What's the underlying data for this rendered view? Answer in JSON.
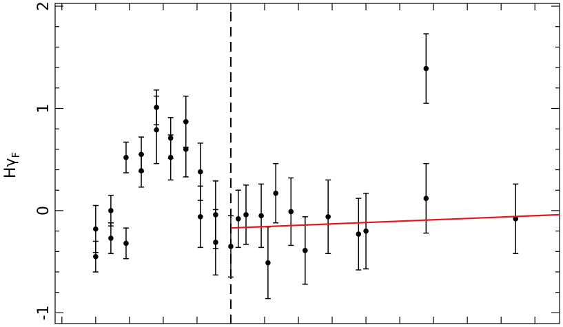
{
  "chart_data": {
    "type": "errorbar",
    "y_label": "Hγ",
    "y_label_sub": "F",
    "xlim": [
      -0.2,
      14.73
    ],
    "ylim": [
      -1.105,
      2.027
    ],
    "xticks": [
      0,
      1,
      2,
      3,
      4,
      5,
      6,
      7,
      8,
      9,
      10,
      11,
      12,
      13,
      14
    ],
    "yticks": [
      -1,
      0,
      1,
      2
    ],
    "yminorticks": [
      -0.8,
      -0.6,
      -0.4,
      -0.2,
      0.2,
      0.4,
      0.6,
      0.8,
      1.2,
      1.4,
      1.6,
      1.8
    ],
    "vline": 5,
    "points": {
      "color": "#000000",
      "x": [
        1.0,
        1.0,
        1.45,
        1.45,
        1.9,
        1.9,
        2.35,
        2.35,
        2.8,
        2.8,
        3.22,
        3.22,
        3.67,
        3.67,
        4.1,
        4.1,
        4.55,
        4.55,
        5.0,
        5.22,
        5.45,
        5.9,
        6.1,
        6.33,
        6.78,
        7.2,
        7.88,
        8.78,
        9.0,
        10.78,
        10.78,
        13.43
      ],
      "values": [
        -0.18,
        -0.45,
        0.0,
        -0.27,
        0.52,
        -0.32,
        0.55,
        0.39,
        1.01,
        0.79,
        0.71,
        0.52,
        0.87,
        0.6,
        0.38,
        -0.06,
        -0.04,
        -0.31,
        -0.35,
        -0.08,
        -0.04,
        -0.05,
        -0.51,
        0.17,
        -0.01,
        -0.39,
        -0.06,
        -0.23,
        -0.2,
        1.39,
        0.12,
        -0.08
      ],
      "errors": [
        0.23,
        0.15,
        0.15,
        0.15,
        0.15,
        0.15,
        0.17,
        0.16,
        0.17,
        0.33,
        0.2,
        0.22,
        0.25,
        0.27,
        0.28,
        0.3,
        0.33,
        0.32,
        0.3,
        0.28,
        0.29,
        0.31,
        0.35,
        0.29,
        0.33,
        0.33,
        0.36,
        0.35,
        0.37,
        0.34,
        0.34,
        0.34
      ]
    },
    "fit": {
      "color": "#e8141c",
      "x": [
        5.0,
        14.73
      ],
      "values": [
        -0.17,
        -0.04
      ]
    }
  }
}
